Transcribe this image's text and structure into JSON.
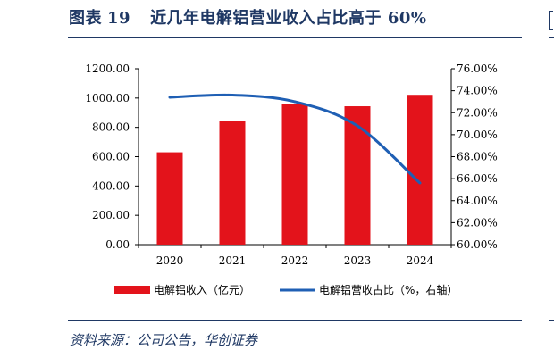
{
  "header": {
    "figure_label": "图表",
    "figure_number": "19",
    "title": "近几年电解铝营业收入占比高于 60%"
  },
  "footer": {
    "source": "资料来源：公司公告，华创证券"
  },
  "colors": {
    "bar": "#e3131b",
    "line": "#1f5fb4",
    "accent": "#1f3864"
  },
  "chart_data": {
    "type": "bar",
    "categories": [
      "2020",
      "2021",
      "2022",
      "2023",
      "2024"
    ],
    "series": [
      {
        "name": "电解铝收入（亿元）",
        "type": "bar",
        "axis": "left",
        "values": [
          630,
          843,
          960,
          944,
          1022
        ]
      },
      {
        "name": "电解铝营收占比（%，右轴）",
        "type": "line",
        "axis": "right",
        "values": [
          73.4,
          73.6,
          73.0,
          70.8,
          65.6
        ]
      }
    ],
    "left_axis": {
      "ylim": [
        0,
        1200
      ],
      "ticks": [
        "0.00",
        "200.00",
        "400.00",
        "600.00",
        "800.00",
        "1000.00",
        "1200.00"
      ]
    },
    "right_axis": {
      "ylim": [
        60,
        76
      ],
      "ticks": [
        "60.00%",
        "62.00%",
        "64.00%",
        "66.00%",
        "68.00%",
        "70.00%",
        "72.00%",
        "74.00%",
        "76.00%"
      ]
    },
    "grid": false,
    "legend_position": "bottom"
  }
}
